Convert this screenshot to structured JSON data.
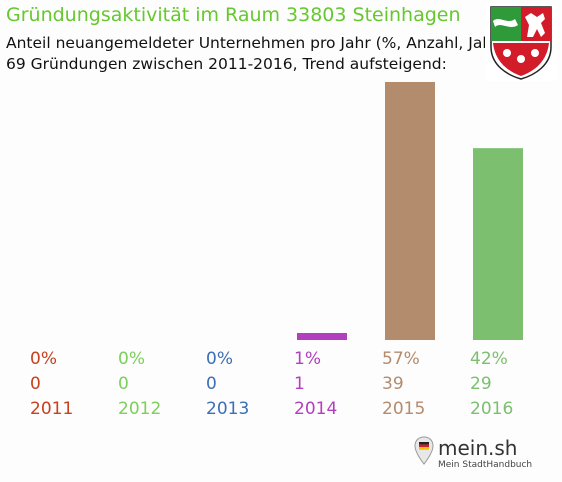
{
  "header": {
    "title": "Gründungsaktivität im Raum 33803 Steinhagen",
    "subtitle_line1": "Anteil neuangemeldeter Unternehmen pro Jahr (%, Anzahl, Jahr)",
    "subtitle_line2": "69 Gründungen zwischen 2011-2016, Trend aufsteigend:"
  },
  "crest_icon": "nrw-coat-of-arms-icon",
  "logo": {
    "brand": "mein.sh",
    "tagline": "Mein StadtHandbuch",
    "icon": "location-pin-icon"
  },
  "chart_data": {
    "type": "bar",
    "categories": [
      "2011",
      "2012",
      "2013",
      "2014",
      "2015",
      "2016"
    ],
    "percent_labels": [
      "0%",
      "0%",
      "0%",
      "1%",
      "57%",
      "42%"
    ],
    "values": [
      0,
      0,
      0,
      1,
      39,
      29
    ],
    "ylim": [
      0,
      39
    ],
    "label_colors": [
      "#c8401e",
      "#7ccf5a",
      "#3d6fb6",
      "#b23fbd",
      "#b38b6d",
      "#7cbf6f"
    ],
    "bar_colors": [
      "#c8401e",
      "#7ccf5a",
      "#3d6fb6",
      "#b23fbd",
      "#b38b6d",
      "#7cbf6f"
    ],
    "grid": false
  }
}
